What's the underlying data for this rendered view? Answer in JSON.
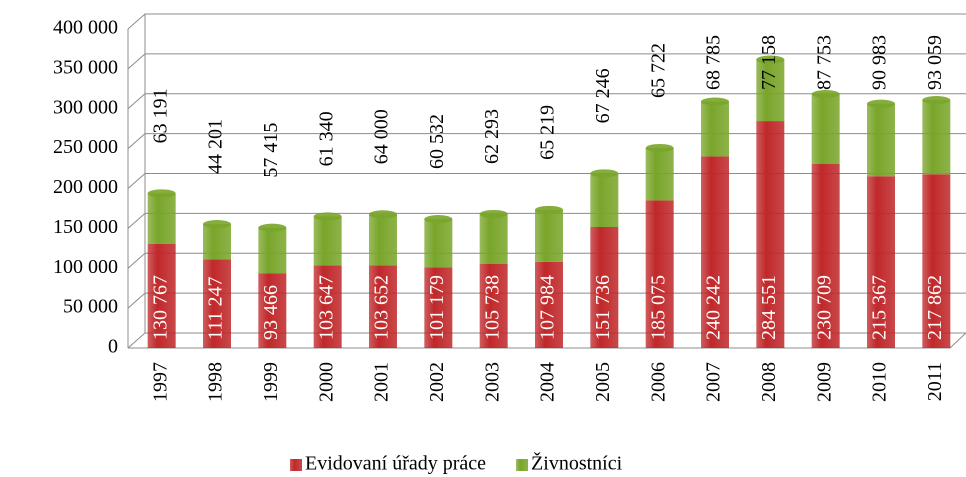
{
  "chart_data": {
    "type": "stacked-bar",
    "categories": [
      "1997",
      "1998",
      "1999",
      "2000",
      "2001",
      "2002",
      "2003",
      "2004",
      "2005",
      "2006",
      "2007",
      "2008",
      "2009",
      "2010",
      "2011"
    ],
    "series": [
      {
        "name": "Evidovaní úřady práce",
        "color": "#c0282a",
        "values": [
          130767,
          111247,
          93466,
          103647,
          103652,
          101179,
          105738,
          107984,
          151736,
          185075,
          240242,
          284551,
          230709,
          215367,
          217862
        ],
        "value_labels": [
          "130 767",
          "111 247",
          "93 466",
          "103 647",
          "103 652",
          "101 179",
          "105 738",
          "107 984",
          "151 736",
          "185 075",
          "240 242",
          "284 551",
          "230 709",
          "215 367",
          "217 862"
        ]
      },
      {
        "name": "Živnostníci",
        "color": "#79a52a",
        "values": [
          63191,
          44201,
          57415,
          61340,
          64000,
          60532,
          62293,
          65219,
          67246,
          65722,
          68785,
          77158,
          87753,
          90983,
          93059
        ],
        "value_labels": [
          "63 191",
          "44 201",
          "57 415",
          "61 340",
          "64 000",
          "60 532",
          "62 293",
          "65 219",
          "67 246",
          "65 722",
          "68 785",
          "77 158",
          "87 753",
          "90 983",
          "93 059"
        ]
      }
    ],
    "ylim": [
      0,
      400000
    ],
    "yticks": [
      0,
      {
        "value": 50000,
        "label": "50 000"
      },
      {
        "value": 100000,
        "label": "100 000"
      },
      {
        "value": 150000,
        "label": "150 000"
      },
      {
        "value": 200000,
        "label": "200 000"
      },
      {
        "value": 250000,
        "label": "250 000"
      },
      {
        "value": 300000,
        "label": "300 000"
      },
      {
        "value": 350000,
        "label": "350 000"
      },
      {
        "value": 400000,
        "label": "400 000"
      }
    ],
    "grid": true,
    "legend": "bottom"
  }
}
